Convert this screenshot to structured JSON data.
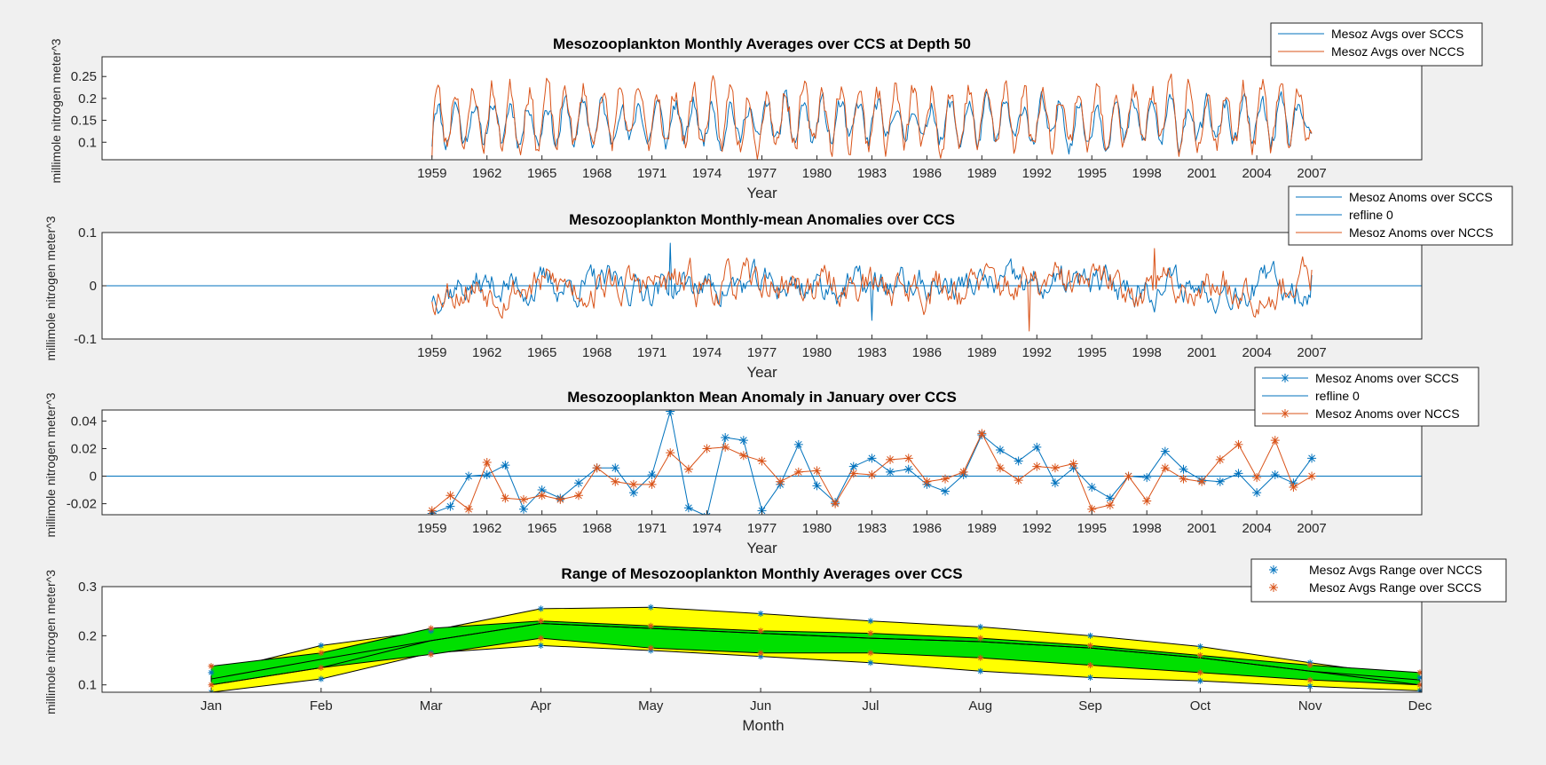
{
  "figure": {
    "background": "#f0f0f0"
  },
  "colors": {
    "scc": "#0072bd",
    "ncc": "#d95319",
    "ref": "#0072bd",
    "green": "#00e000",
    "yellow": "#ffff00",
    "outline": "#000000"
  },
  "chart_data": [
    {
      "id": "p1",
      "type": "line",
      "title": "Mesozooplankton Monthly Averages over CCS at Depth 50",
      "xlabel": "Year",
      "ylabel": "millimole nitrogen meter^3",
      "xlim": [
        1941,
        2013
      ],
      "ylim": [
        0.06,
        0.295
      ],
      "xticks": [
        1959,
        1962,
        1965,
        1968,
        1971,
        1974,
        1977,
        1980,
        1983,
        1986,
        1989,
        1992,
        1995,
        1998,
        2001,
        2004,
        2007
      ],
      "yticks": [
        0.1,
        0.15,
        0.2,
        0.25
      ],
      "ytick_labels": [
        "0.1",
        "0.15",
        "0.2",
        "0.25"
      ],
      "legend_position": "top-right",
      "legend": [
        "Mesoz Avgs over SCCS",
        "Mesoz Avgs over NCCS"
      ],
      "series": [
        {
          "name": "Mesoz Avgs over SCCS",
          "color": "#0072bd",
          "x_start": 1959.0,
          "x_step": 0.0833333,
          "mean": 0.145,
          "amplitude": 0.045,
          "noise": 0.02,
          "seed": 11,
          "start_value": 0.09,
          "end_value": 0.12
        },
        {
          "name": "Mesoz Avgs over NCCS",
          "color": "#d95319",
          "x_start": 1959.0,
          "x_step": 0.0833333,
          "mean": 0.158,
          "amplitude": 0.065,
          "noise": 0.025,
          "seed": 23,
          "start_value": 0.065,
          "end_value": 0.12
        }
      ]
    },
    {
      "id": "p2",
      "type": "line",
      "title": "Mesozooplankton Monthly-mean Anomalies over CCS",
      "xlabel": "Year",
      "ylabel": "millimole nitrogen meter^3",
      "xlim": [
        1941,
        2013
      ],
      "ylim": [
        -0.1,
        0.1
      ],
      "xticks": [
        1959,
        1962,
        1965,
        1968,
        1971,
        1974,
        1977,
        1980,
        1983,
        1986,
        1989,
        1992,
        1995,
        1998,
        2001,
        2004,
        2007
      ],
      "yticks": [
        -0.1,
        0,
        0.1
      ],
      "ytick_labels": [
        "-0.1",
        "0",
        "0.1"
      ],
      "legend_position": "top-right",
      "legend": [
        "Mesoz Anoms over SCCS",
        "refline 0",
        "Mesoz Anoms over NCCS"
      ],
      "series": [
        {
          "name": "Mesoz Anoms over SCCS",
          "color": "#0072bd",
          "x_start": 1959.0,
          "x_step": 0.0833333,
          "noise": 0.022,
          "seed": 37,
          "start_value": -0.03,
          "end_value": 0.02,
          "max_point": [
            1972.0,
            0.08
          ],
          "min_point": [
            1983.0,
            -0.065
          ]
        },
        {
          "name": "refline 0",
          "color": "#0072bd",
          "x": [
            1941,
            2013
          ],
          "y": [
            0,
            0
          ]
        },
        {
          "name": "Mesoz Anoms over NCCS",
          "color": "#d95319",
          "x_start": 1959.0,
          "x_step": 0.0833333,
          "noise": 0.025,
          "seed": 53,
          "start_value": -0.03,
          "end_value": 0.03,
          "max_point": [
            1998.4,
            0.07
          ],
          "min_point": [
            1991.6,
            -0.085
          ]
        }
      ]
    },
    {
      "id": "p3",
      "type": "line",
      "title": "Mesozooplankton Mean Anomaly in January over CCS",
      "xlabel": "Year",
      "ylabel": "millimole nitrogen meter^3",
      "xlim": [
        1941,
        2013
      ],
      "ylim": [
        -0.028,
        0.048
      ],
      "xticks": [
        1959,
        1962,
        1965,
        1968,
        1971,
        1974,
        1977,
        1980,
        1983,
        1986,
        1989,
        1992,
        1995,
        1998,
        2001,
        2004,
        2007
      ],
      "yticks": [
        -0.02,
        0,
        0.02,
        0.04
      ],
      "ytick_labels": [
        "-0.02",
        "0",
        "0.02",
        "0.04"
      ],
      "legend_position": "top-right",
      "legend": [
        "Mesoz Anoms over SCCS",
        "refline 0",
        "Mesoz Anoms over NCCS"
      ],
      "x": [
        1959,
        1960,
        1961,
        1962,
        1963,
        1964,
        1965,
        1966,
        1967,
        1968,
        1969,
        1970,
        1971,
        1972,
        1973,
        1974,
        1975,
        1976,
        1977,
        1978,
        1979,
        1980,
        1981,
        1982,
        1983,
        1984,
        1985,
        1986,
        1987,
        1988,
        1989,
        1990,
        1991,
        1992,
        1993,
        1994,
        1995,
        1996,
        1997,
        1998,
        1999,
        2000,
        2001,
        2002,
        2003,
        2004,
        2005,
        2006,
        2007
      ],
      "series": [
        {
          "name": "Mesoz Anoms over SCCS",
          "color": "#0072bd",
          "marker": "*",
          "values": [
            -0.027,
            -0.022,
            0.0,
            0.001,
            0.008,
            -0.024,
            -0.01,
            -0.016,
            -0.005,
            0.006,
            0.006,
            -0.012,
            0.001,
            0.047,
            -0.023,
            -0.029,
            0.028,
            0.026,
            -0.025,
            -0.006,
            0.023,
            -0.007,
            -0.019,
            0.007,
            0.013,
            0.003,
            0.005,
            -0.006,
            -0.011,
            0.001,
            0.03,
            0.019,
            0.011,
            0.021,
            -0.005,
            0.006,
            -0.008,
            -0.016,
            0.0,
            -0.001,
            0.018,
            0.005,
            -0.003,
            -0.004,
            0.002,
            -0.012,
            0.001,
            -0.005,
            0.013
          ]
        },
        {
          "name": "refline 0",
          "color": "#0072bd",
          "x": [
            1941,
            2013
          ],
          "y": [
            0,
            0
          ]
        },
        {
          "name": "Mesoz Anoms over NCCS",
          "color": "#d95319",
          "marker": "*",
          "values": [
            -0.025,
            -0.014,
            -0.024,
            0.01,
            -0.016,
            -0.017,
            -0.014,
            -0.017,
            -0.014,
            0.006,
            -0.004,
            -0.006,
            -0.006,
            0.017,
            0.005,
            0.02,
            0.021,
            0.015,
            0.011,
            -0.004,
            0.003,
            0.004,
            -0.02,
            0.002,
            0.001,
            0.012,
            0.013,
            -0.004,
            -0.002,
            0.003,
            0.031,
            0.006,
            -0.003,
            0.007,
            0.006,
            0.009,
            -0.024,
            -0.021,
            0.0,
            -0.018,
            0.006,
            -0.002,
            -0.004,
            0.012,
            0.023,
            -0.001,
            0.026,
            -0.008,
            0.0
          ]
        }
      ]
    },
    {
      "id": "p4",
      "type": "area",
      "title": "Range of Mesozooplankton Monthly Averages over CCS",
      "xlabel": "Month",
      "ylabel": "millimole nitrogen meter^3",
      "categories": [
        "Jan",
        "Feb",
        "Mar",
        "Apr",
        "May",
        "Jun",
        "Jul",
        "Aug",
        "Sep",
        "Oct",
        "Nov",
        "Dec"
      ],
      "ylim": [
        0.085,
        0.3
      ],
      "yticks": [
        0.1,
        0.2,
        0.3
      ],
      "ytick_labels": [
        "0.1",
        "0.2",
        "0.3"
      ],
      "legend_position": "top-right",
      "legend": [
        "Mesoz Avgs Range over NCCS",
        "Mesoz Avgs Range over SCCS"
      ],
      "series": [
        {
          "name": "Mesoz Avgs Range over NCCS",
          "fill": "#ffff00",
          "marker_color": "#0072bd",
          "upper": [
            0.125,
            0.18,
            0.21,
            0.255,
            0.258,
            0.245,
            0.23,
            0.218,
            0.2,
            0.178,
            0.145,
            0.115
          ],
          "lower": [
            0.085,
            0.112,
            0.165,
            0.18,
            0.17,
            0.158,
            0.145,
            0.128,
            0.115,
            0.108,
            0.097,
            0.088
          ]
        },
        {
          "name": "Mesoz Avgs Range over SCCS",
          "fill": "#00e000",
          "marker_color": "#d95319",
          "upper": [
            0.138,
            0.165,
            0.215,
            0.23,
            0.22,
            0.21,
            0.205,
            0.195,
            0.18,
            0.16,
            0.14,
            0.125
          ],
          "lower": [
            0.1,
            0.135,
            0.162,
            0.195,
            0.175,
            0.165,
            0.165,
            0.155,
            0.14,
            0.125,
            0.11,
            0.1
          ]
        }
      ],
      "mean_lines": [
        [
          0.112,
          0.152,
          0.19,
          0.225,
          0.215,
          0.205,
          0.195,
          0.188,
          0.175,
          0.155,
          0.128,
          0.11
        ],
        [
          0.1,
          0.135,
          0.19,
          0.225,
          0.215,
          0.205,
          0.195,
          0.188,
          0.175,
          0.155,
          0.128,
          0.1
        ]
      ]
    }
  ]
}
